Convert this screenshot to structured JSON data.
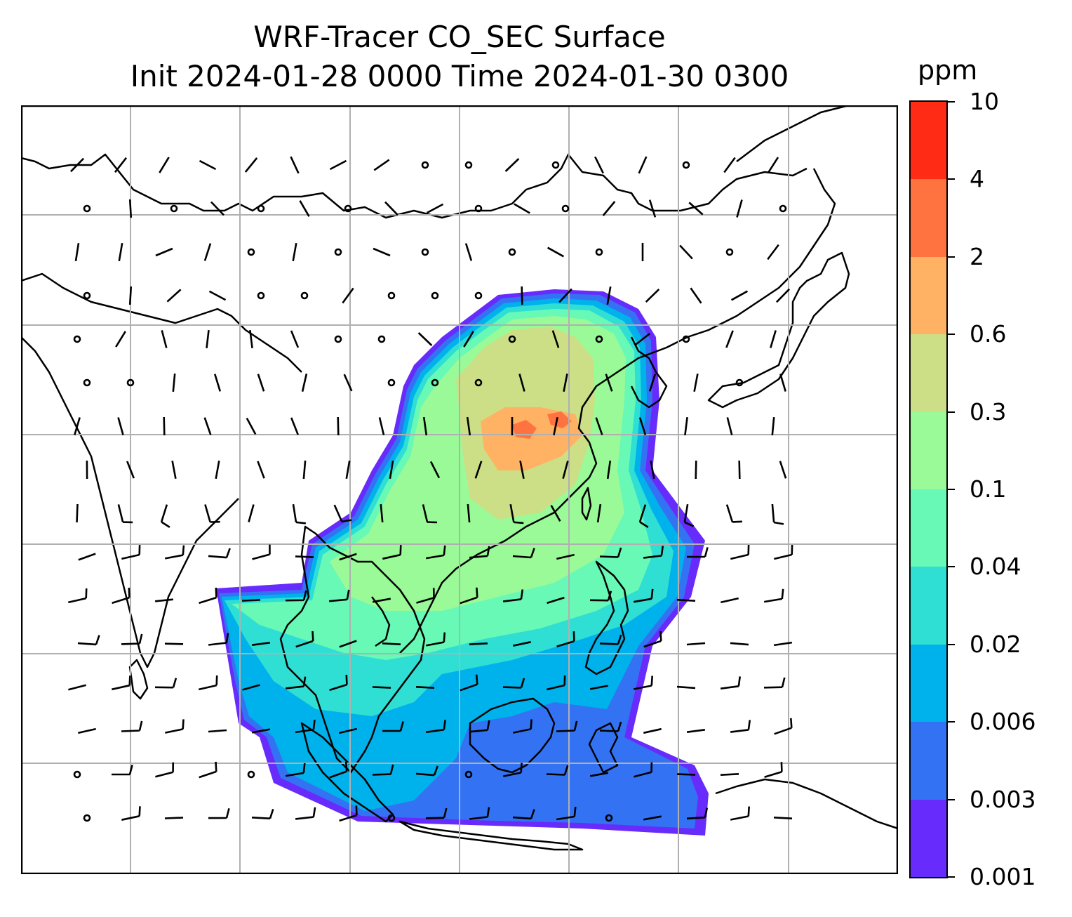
{
  "title": {
    "line1": "WRF-Tracer CO_SEC Surface",
    "line2": "Init 2024-01-28 0000 Time 2024-01-30 0300"
  },
  "colorbar": {
    "unit_label": "ppm",
    "ticks": [
      "0.001",
      "0.003",
      "0.006",
      "0.02",
      "0.04",
      "0.1",
      "0.3",
      "0.6",
      "2",
      "4",
      "10"
    ],
    "colors": [
      "#672bfb",
      "#3373f3",
      "#00b2eb",
      "#2fdfd3",
      "#68f9b6",
      "#9afa97",
      "#ccdf86",
      "#ffb164",
      "#ff7340",
      "#ff2b15"
    ]
  },
  "map": {
    "gridlines": true,
    "wind_barbs": true,
    "coastlines": true,
    "field_color_low": "#672bfb",
    "field_color_high": "#ff7340"
  }
}
